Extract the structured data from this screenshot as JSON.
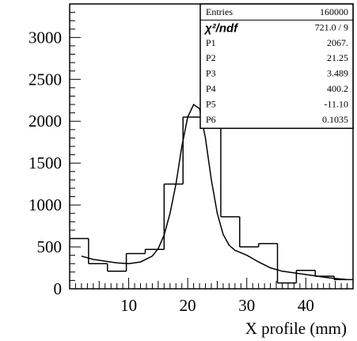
{
  "chart_data": {
    "type": "histogram",
    "xlabel": "X profile (mm)",
    "ylabel": "",
    "title": "",
    "xlim": [
      0,
      48
    ],
    "ylim": [
      0,
      3400
    ],
    "x_ticks": [
      10,
      20,
      30,
      40
    ],
    "y_ticks": [
      0,
      500,
      1000,
      1500,
      2000,
      2500,
      3000
    ],
    "bins": {
      "edges": [
        0,
        3.2,
        6.4,
        9.6,
        12.8,
        16,
        19.2,
        22.4,
        25.6,
        28.8,
        32,
        35.2,
        38.4,
        41.6,
        44.8,
        48
      ],
      "counts": [
        600,
        300,
        210,
        420,
        470,
        1250,
        2050,
        2350,
        860,
        500,
        540,
        70,
        220,
        150,
        110
      ]
    },
    "fit_curve": {
      "x": [
        2,
        4,
        6,
        8,
        10,
        12,
        14,
        15,
        16,
        17,
        18,
        19,
        20,
        21,
        22,
        23,
        24,
        25,
        26,
        27,
        28,
        30,
        32,
        34,
        36,
        40,
        44,
        47
      ],
      "y": [
        390,
        350,
        330,
        310,
        300,
        320,
        390,
        480,
        640,
        900,
        1250,
        1700,
        2050,
        2200,
        2150,
        1800,
        1300,
        900,
        650,
        520,
        460,
        400,
        320,
        250,
        210,
        170,
        130,
        110
      ]
    },
    "grid": false,
    "legend": "none"
  },
  "stats_box": {
    "rows": [
      {
        "label": "Entries",
        "value": "160000"
      },
      {
        "label": "χ²/ndf",
        "value": "721.0  /  9"
      },
      {
        "label": "P1",
        "value": "2067."
      },
      {
        "label": "P2",
        "value": "21.25"
      },
      {
        "label": "P3",
        "value": "3.489"
      },
      {
        "label": "P4",
        "value": "400.2"
      },
      {
        "label": "P5",
        "value": "-11.10"
      },
      {
        "label": "P6",
        "value": "0.1035"
      }
    ]
  }
}
